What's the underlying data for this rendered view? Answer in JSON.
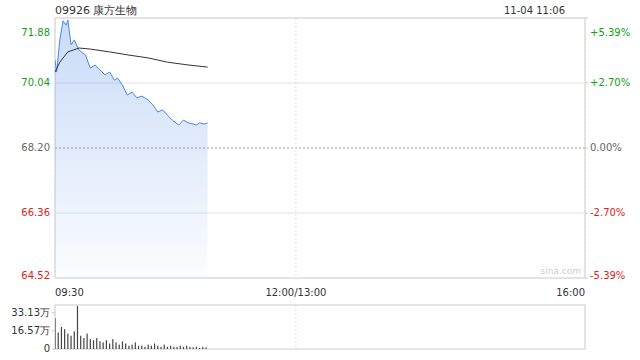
{
  "chart_data": [
    {
      "type": "line",
      "title": "09926 康方生物",
      "subtitle": "11-04 11:06",
      "annotation": "sina.com",
      "xlim": [
        0,
        330
      ],
      "xticks": [
        {
          "value": 0,
          "label": "09:30"
        },
        {
          "value": 150,
          "label": "12:00/13:00"
        },
        {
          "value": 330,
          "label": "16:00"
        }
      ],
      "ylim": [
        64.52,
        71.88
      ],
      "yticks": [
        64.52,
        66.36,
        {
          "value": 68.2,
          "label": "68.20"
        },
        70.04,
        71.88
      ],
      "y2lim": [
        -5.39,
        5.39
      ],
      "y2ticks": [
        {
          "value": -5.39,
          "label": "-5.39%"
        },
        {
          "value": -2.7,
          "label": "-2.70%"
        },
        {
          "value": 0,
          "label": "0.00%"
        },
        {
          "value": 2.7,
          "label": "+2.70%"
        },
        {
          "value": 5.39,
          "label": "+5.39%"
        }
      ],
      "grid": true,
      "series": [
        {
          "color": "#4a86e8",
          "x": [
            0,
            1,
            3,
            5,
            7,
            8,
            10,
            12,
            15,
            19,
            22,
            25,
            28,
            31,
            34,
            37,
            39,
            42,
            45,
            48,
            51,
            54,
            58,
            61,
            64,
            67,
            70,
            73,
            77,
            80,
            83,
            86,
            88,
            90,
            93,
            95
          ],
          "values": [
            70.69,
            70.35,
            71.26,
            71.8,
            71.68,
            71.82,
            71.12,
            71.26,
            70.97,
            70.83,
            70.46,
            70.55,
            70.41,
            70.27,
            70.35,
            70.12,
            70.18,
            69.98,
            69.7,
            69.78,
            69.62,
            69.67,
            69.56,
            69.42,
            69.22,
            69.28,
            69.13,
            68.99,
            68.85,
            68.99,
            68.91,
            68.88,
            68.85,
            68.91,
            68.88,
            68.91
          ]
        },
        {
          "color": "#333333",
          "x": [
            0,
            3,
            8,
            15,
            22,
            34,
            46,
            58,
            70,
            83,
            95
          ],
          "values": [
            70.35,
            70.63,
            70.92,
            71.03,
            71.0,
            70.92,
            70.83,
            70.75,
            70.63,
            70.55,
            70.49
          ]
        }
      ]
    },
    {
      "type": "bar",
      "color": "#444444",
      "tick_labels": "y",
      "xlim": [
        0,
        330
      ],
      "x": [
        0,
        2,
        4,
        6,
        8,
        10,
        12,
        14,
        16,
        18,
        20,
        22,
        24,
        26,
        28,
        30,
        32,
        34,
        36,
        38,
        40,
        42,
        44,
        46,
        48,
        50,
        52,
        54,
        56,
        58,
        60,
        62,
        64,
        66,
        68,
        70,
        72,
        74,
        76,
        78,
        80,
        82,
        84,
        86,
        88,
        90,
        92,
        94
      ],
      "values": [
        28,
        15,
        20,
        18,
        14,
        12,
        16,
        39,
        12,
        10,
        14,
        9,
        8,
        10,
        7,
        6,
        8,
        5,
        9,
        6,
        4,
        7,
        5,
        3,
        4,
        6,
        3,
        3,
        2,
        4,
        3,
        5,
        3,
        2,
        4,
        2,
        3,
        2,
        2,
        3,
        2,
        3,
        2,
        1.5,
        2,
        1,
        2,
        1.5
      ],
      "ylim": [
        0,
        40
      ],
      "yticks": [
        {
          "value": 0,
          "label": "0"
        },
        {
          "value": 16.57,
          "label": "16.57万"
        },
        {
          "value": 33.13,
          "label": "33.13万"
        }
      ]
    }
  ]
}
